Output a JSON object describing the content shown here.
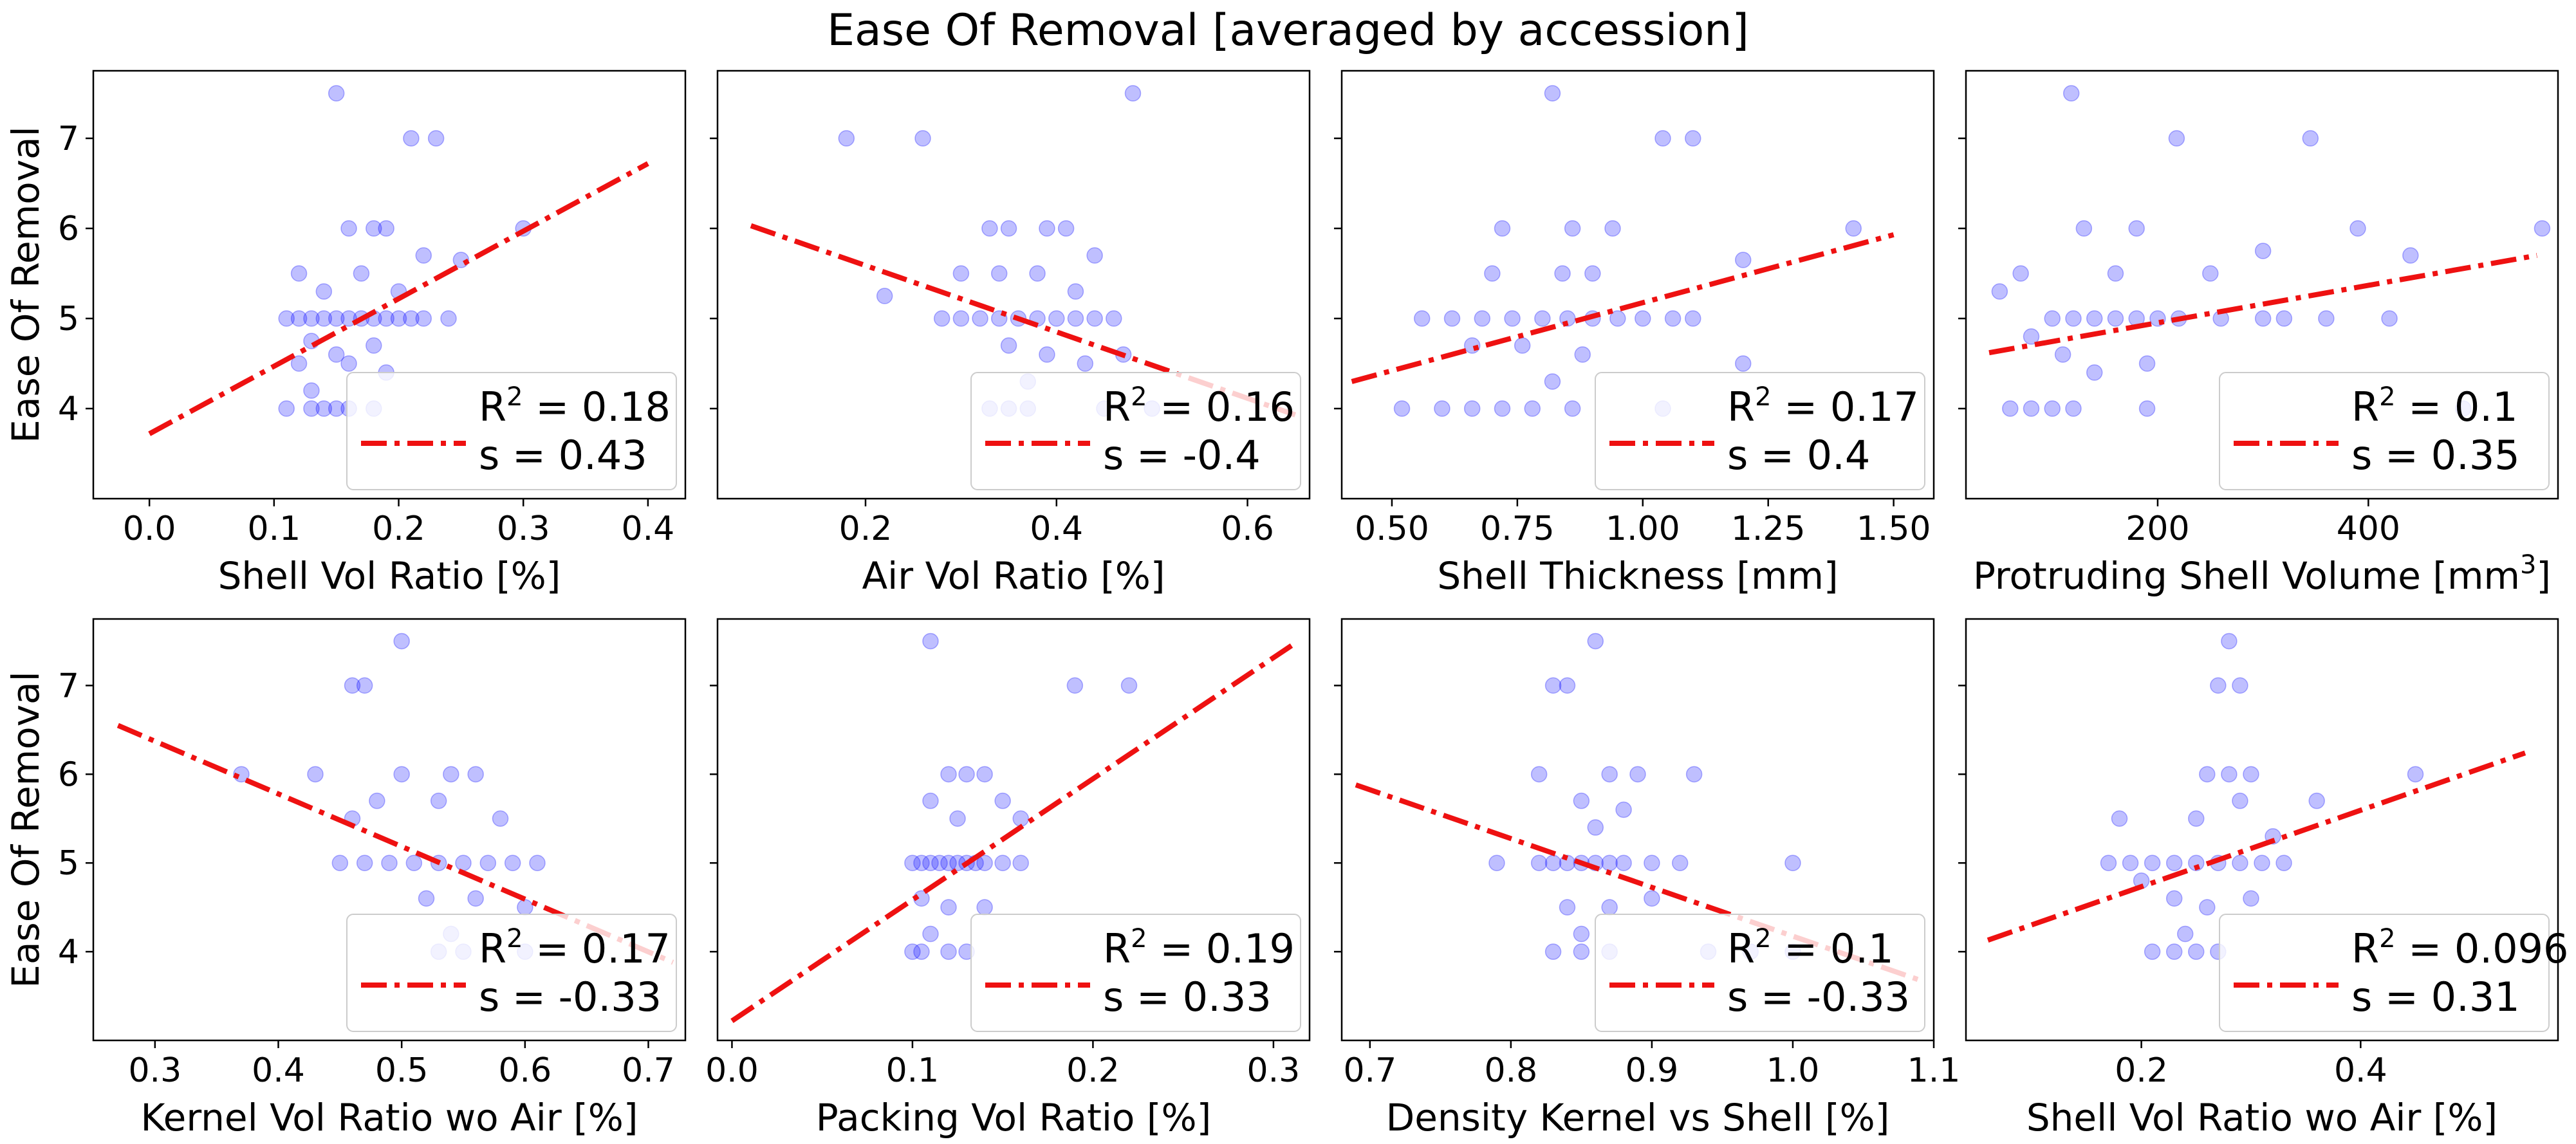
{
  "figure_title": "Ease Of Removal [averaged by accession]",
  "colors": {
    "points": "#0000ff",
    "fit_line": "#ee1111",
    "frame": "#000000"
  },
  "chart_data": [
    {
      "type": "scatter",
      "xlabel": "Shell Vol Ratio [%]",
      "ylabel": "Ease Of Removal",
      "xlim": [
        -0.045,
        0.43
      ],
      "ylim": [
        3.0,
        7.75
      ],
      "xticks": [
        0.0,
        0.1,
        0.2,
        0.3,
        0.4
      ],
      "xtick_labels": [
        "0.0",
        "0.1",
        "0.2",
        "0.3",
        "0.4"
      ],
      "yticks": [
        4,
        5,
        6,
        7
      ],
      "ytick_labels": [
        "4",
        "5",
        "6",
        "7"
      ],
      "fit_line": {
        "x": [
          0.0,
          0.4
        ],
        "y": [
          3.72,
          6.72
        ]
      },
      "legend": {
        "r2": "0.18",
        "s": "0.43"
      },
      "points": [
        [
          0.15,
          7.5
        ],
        [
          0.21,
          7.0
        ],
        [
          0.23,
          7.0
        ],
        [
          0.16,
          6.0
        ],
        [
          0.18,
          6.0
        ],
        [
          0.19,
          6.0
        ],
        [
          0.3,
          6.0
        ],
        [
          0.12,
          5.5
        ],
        [
          0.17,
          5.5
        ],
        [
          0.22,
          5.7
        ],
        [
          0.25,
          5.65
        ],
        [
          0.14,
          5.3
        ],
        [
          0.2,
          5.3
        ],
        [
          0.11,
          5.0
        ],
        [
          0.12,
          5.0
        ],
        [
          0.13,
          5.0
        ],
        [
          0.14,
          5.0
        ],
        [
          0.15,
          5.0
        ],
        [
          0.16,
          5.0
        ],
        [
          0.17,
          5.0
        ],
        [
          0.18,
          5.0
        ],
        [
          0.19,
          5.0
        ],
        [
          0.2,
          5.0
        ],
        [
          0.21,
          5.0
        ],
        [
          0.22,
          5.0
        ],
        [
          0.24,
          5.0
        ],
        [
          0.13,
          4.75
        ],
        [
          0.15,
          4.6
        ],
        [
          0.18,
          4.7
        ],
        [
          0.12,
          4.5
        ],
        [
          0.16,
          4.5
        ],
        [
          0.19,
          4.4
        ],
        [
          0.13,
          4.2
        ],
        [
          0.11,
          4.0
        ],
        [
          0.13,
          4.0
        ],
        [
          0.14,
          4.0
        ],
        [
          0.15,
          4.0
        ],
        [
          0.16,
          4.0
        ],
        [
          0.18,
          4.0
        ]
      ]
    },
    {
      "type": "scatter",
      "xlabel": "Air Vol Ratio [%]",
      "ylabel": "",
      "xlim": [
        0.045,
        0.665
      ],
      "ylim": [
        3.0,
        7.75
      ],
      "xticks": [
        0.2,
        0.4,
        0.6
      ],
      "xtick_labels": [
        "0.2",
        "0.4",
        "0.6"
      ],
      "yticks": [
        4,
        5,
        6,
        7
      ],
      "ytick_labels": [],
      "fit_line": {
        "x": [
          0.08,
          0.65
        ],
        "y": [
          6.03,
          3.93
        ]
      },
      "legend": {
        "r2": "0.16",
        "s": "-0.4"
      },
      "points": [
        [
          0.48,
          7.5
        ],
        [
          0.18,
          7.0
        ],
        [
          0.26,
          7.0
        ],
        [
          0.33,
          6.0
        ],
        [
          0.35,
          6.0
        ],
        [
          0.39,
          6.0
        ],
        [
          0.41,
          6.0
        ],
        [
          0.44,
          5.7
        ],
        [
          0.3,
          5.5
        ],
        [
          0.34,
          5.5
        ],
        [
          0.38,
          5.5
        ],
        [
          0.42,
          5.3
        ],
        [
          0.22,
          5.25
        ],
        [
          0.28,
          5.0
        ],
        [
          0.3,
          5.0
        ],
        [
          0.32,
          5.0
        ],
        [
          0.34,
          5.0
        ],
        [
          0.36,
          5.0
        ],
        [
          0.38,
          5.0
        ],
        [
          0.4,
          5.0
        ],
        [
          0.42,
          5.0
        ],
        [
          0.44,
          5.0
        ],
        [
          0.46,
          5.0
        ],
        [
          0.35,
          4.7
        ],
        [
          0.39,
          4.6
        ],
        [
          0.43,
          4.5
        ],
        [
          0.47,
          4.6
        ],
        [
          0.37,
          4.3
        ],
        [
          0.33,
          4.0
        ],
        [
          0.35,
          4.0
        ],
        [
          0.37,
          4.0
        ],
        [
          0.45,
          4.0
        ],
        [
          0.5,
          4.0
        ]
      ]
    },
    {
      "type": "scatter",
      "xlabel": "Shell Thickness [mm]",
      "ylabel": "",
      "xlim": [
        0.4,
        1.58
      ],
      "ylim": [
        3.0,
        7.75
      ],
      "xticks": [
        0.5,
        0.75,
        1.0,
        1.25,
        1.5
      ],
      "xtick_labels": [
        "0.50",
        "0.75",
        "1.00",
        "1.25",
        "1.50"
      ],
      "yticks": [
        4,
        5,
        6,
        7
      ],
      "ytick_labels": [],
      "fit_line": {
        "x": [
          0.42,
          1.5
        ],
        "y": [
          4.3,
          5.93
        ]
      },
      "legend": {
        "r2": "0.17",
        "s": "0.4"
      },
      "points": [
        [
          0.82,
          7.5
        ],
        [
          1.04,
          7.0
        ],
        [
          1.1,
          7.0
        ],
        [
          0.72,
          6.0
        ],
        [
          0.86,
          6.0
        ],
        [
          0.94,
          6.0
        ],
        [
          1.42,
          6.0
        ],
        [
          0.7,
          5.5
        ],
        [
          0.84,
          5.5
        ],
        [
          0.9,
          5.5
        ],
        [
          1.2,
          5.65
        ],
        [
          0.56,
          5.0
        ],
        [
          0.62,
          5.0
        ],
        [
          0.68,
          5.0
        ],
        [
          0.74,
          5.0
        ],
        [
          0.8,
          5.0
        ],
        [
          0.85,
          5.0
        ],
        [
          0.9,
          5.0
        ],
        [
          0.95,
          5.0
        ],
        [
          1.0,
          5.0
        ],
        [
          1.06,
          5.0
        ],
        [
          1.1,
          5.0
        ],
        [
          0.66,
          4.7
        ],
        [
          0.76,
          4.7
        ],
        [
          0.88,
          4.6
        ],
        [
          0.82,
          4.3
        ],
        [
          1.2,
          4.5
        ],
        [
          0.52,
          4.0
        ],
        [
          0.6,
          4.0
        ],
        [
          0.66,
          4.0
        ],
        [
          0.72,
          4.0
        ],
        [
          0.78,
          4.0
        ],
        [
          0.86,
          4.0
        ],
        [
          1.04,
          4.0
        ]
      ]
    },
    {
      "type": "scatter",
      "xlabel": "Protruding Shell Volume [mm³]",
      "ylabel": "",
      "xlim": [
        18,
        580
      ],
      "ylim": [
        3.0,
        7.75
      ],
      "xticks": [
        200,
        400
      ],
      "xtick_labels": [
        "200",
        "400"
      ],
      "yticks": [
        4,
        5,
        6,
        7
      ],
      "ytick_labels": [],
      "fit_line": {
        "x": [
          40,
          560
        ],
        "y": [
          4.62,
          5.7
        ]
      },
      "legend": {
        "r2": "0.1",
        "s": "0.35"
      },
      "points": [
        [
          118,
          7.5
        ],
        [
          218,
          7.0
        ],
        [
          345,
          7.0
        ],
        [
          130,
          6.0
        ],
        [
          180,
          6.0
        ],
        [
          300,
          5.75
        ],
        [
          390,
          6.0
        ],
        [
          565,
          6.0
        ],
        [
          440,
          5.7
        ],
        [
          70,
          5.5
        ],
        [
          160,
          5.5
        ],
        [
          250,
          5.5
        ],
        [
          50,
          5.3
        ],
        [
          100,
          5.0
        ],
        [
          120,
          5.0
        ],
        [
          140,
          5.0
        ],
        [
          160,
          5.0
        ],
        [
          180,
          5.0
        ],
        [
          200,
          5.0
        ],
        [
          220,
          5.0
        ],
        [
          260,
          5.0
        ],
        [
          300,
          5.0
        ],
        [
          320,
          5.0
        ],
        [
          360,
          5.0
        ],
        [
          420,
          5.0
        ],
        [
          80,
          4.8
        ],
        [
          110,
          4.6
        ],
        [
          140,
          4.4
        ],
        [
          190,
          4.5
        ],
        [
          60,
          4.0
        ],
        [
          80,
          4.0
        ],
        [
          100,
          4.0
        ],
        [
          120,
          4.0
        ],
        [
          190,
          4.0
        ],
        [
          490,
          4.0
        ]
      ]
    },
    {
      "type": "scatter",
      "xlabel": "Kernel Vol Ratio wo Air [%]",
      "ylabel": "Ease Of Removal",
      "xlim": [
        0.25,
        0.73
      ],
      "ylim": [
        3.0,
        7.75
      ],
      "xticks": [
        0.3,
        0.4,
        0.5,
        0.6,
        0.7
      ],
      "xtick_labels": [
        "0.3",
        "0.4",
        "0.5",
        "0.6",
        "0.7"
      ],
      "yticks": [
        4,
        5,
        6,
        7
      ],
      "ytick_labels": [
        "4",
        "5",
        "6",
        "7"
      ],
      "fit_line": {
        "x": [
          0.27,
          0.72
        ],
        "y": [
          6.55,
          3.88
        ]
      },
      "legend": {
        "r2": "0.17",
        "s": "-0.33"
      },
      "points": [
        [
          0.5,
          7.5
        ],
        [
          0.46,
          7.0
        ],
        [
          0.47,
          7.0
        ],
        [
          0.37,
          6.0
        ],
        [
          0.43,
          6.0
        ],
        [
          0.5,
          6.0
        ],
        [
          0.54,
          6.0
        ],
        [
          0.56,
          6.0
        ],
        [
          0.48,
          5.7
        ],
        [
          0.53,
          5.7
        ],
        [
          0.58,
          5.5
        ],
        [
          0.46,
          5.5
        ],
        [
          0.45,
          5.0
        ],
        [
          0.47,
          5.0
        ],
        [
          0.49,
          5.0
        ],
        [
          0.51,
          5.0
        ],
        [
          0.53,
          5.0
        ],
        [
          0.55,
          5.0
        ],
        [
          0.57,
          5.0
        ],
        [
          0.59,
          5.0
        ],
        [
          0.61,
          5.0
        ],
        [
          0.52,
          4.6
        ],
        [
          0.56,
          4.6
        ],
        [
          0.6,
          4.5
        ],
        [
          0.54,
          4.2
        ],
        [
          0.53,
          4.0
        ],
        [
          0.55,
          4.0
        ],
        [
          0.6,
          4.0
        ]
      ]
    },
    {
      "type": "scatter",
      "xlabel": "Packing Vol Ratio [%]",
      "ylabel": "",
      "xlim": [
        -0.008,
        0.32
      ],
      "ylim": [
        3.0,
        7.75
      ],
      "xticks": [
        0.0,
        0.1,
        0.2,
        0.3
      ],
      "xtick_labels": [
        "0.0",
        "0.1",
        "0.2",
        "0.3"
      ],
      "yticks": [
        4,
        5,
        6,
        7
      ],
      "ytick_labels": [],
      "fit_line": {
        "x": [
          0.0,
          0.31
        ],
        "y": [
          3.22,
          7.45
        ]
      },
      "legend": {
        "r2": "0.19",
        "s": "0.33"
      },
      "points": [
        [
          0.11,
          7.5
        ],
        [
          0.19,
          7.0
        ],
        [
          0.22,
          7.0
        ],
        [
          0.12,
          6.0
        ],
        [
          0.13,
          6.0
        ],
        [
          0.14,
          6.0
        ],
        [
          0.15,
          5.7
        ],
        [
          0.11,
          5.7
        ],
        [
          0.16,
          5.5
        ],
        [
          0.125,
          5.5
        ],
        [
          0.1,
          5.0
        ],
        [
          0.105,
          5.0
        ],
        [
          0.11,
          5.0
        ],
        [
          0.115,
          5.0
        ],
        [
          0.12,
          5.0
        ],
        [
          0.125,
          5.0
        ],
        [
          0.13,
          5.0
        ],
        [
          0.135,
          5.0
        ],
        [
          0.14,
          5.0
        ],
        [
          0.15,
          5.0
        ],
        [
          0.16,
          5.0
        ],
        [
          0.105,
          4.6
        ],
        [
          0.12,
          4.5
        ],
        [
          0.14,
          4.5
        ],
        [
          0.11,
          4.2
        ],
        [
          0.1,
          4.0
        ],
        [
          0.105,
          4.0
        ],
        [
          0.12,
          4.0
        ],
        [
          0.13,
          4.0
        ]
      ]
    },
    {
      "type": "scatter",
      "xlabel": "Density Kernel vs Shell [%]",
      "ylabel": "",
      "xlim": [
        0.68,
        1.1
      ],
      "ylim": [
        3.0,
        7.75
      ],
      "xticks": [
        0.7,
        0.8,
        0.9,
        1.0,
        1.1
      ],
      "xtick_labels": [
        "0.7",
        "0.8",
        "0.9",
        "1.0",
        "1.1"
      ],
      "yticks": [
        4,
        5,
        6,
        7
      ],
      "ytick_labels": [],
      "fit_line": {
        "x": [
          0.69,
          1.09
        ],
        "y": [
          5.88,
          3.68
        ]
      },
      "legend": {
        "r2": "0.1",
        "s": "-0.33"
      },
      "points": [
        [
          0.86,
          7.5
        ],
        [
          0.83,
          7.0
        ],
        [
          0.84,
          7.0
        ],
        [
          0.82,
          6.0
        ],
        [
          0.87,
          6.0
        ],
        [
          0.89,
          6.0
        ],
        [
          0.93,
          6.0
        ],
        [
          0.88,
          5.6
        ],
        [
          0.85,
          5.7
        ],
        [
          0.86,
          5.4
        ],
        [
          0.79,
          5.0
        ],
        [
          0.82,
          5.0
        ],
        [
          0.83,
          5.0
        ],
        [
          0.84,
          5.0
        ],
        [
          0.85,
          5.0
        ],
        [
          0.86,
          5.0
        ],
        [
          0.87,
          5.0
        ],
        [
          0.88,
          5.0
        ],
        [
          0.9,
          5.0
        ],
        [
          0.92,
          5.0
        ],
        [
          1.0,
          5.0
        ],
        [
          0.84,
          4.5
        ],
        [
          0.87,
          4.5
        ],
        [
          0.9,
          4.6
        ],
        [
          0.85,
          4.2
        ],
        [
          0.83,
          4.0
        ],
        [
          0.85,
          4.0
        ],
        [
          0.87,
          4.0
        ],
        [
          0.94,
          4.0
        ],
        [
          0.97,
          4.0
        ],
        [
          1.0,
          4.0
        ]
      ]
    },
    {
      "type": "scatter",
      "xlabel": "Shell Vol Ratio wo Air [%]",
      "ylabel": "",
      "xlim": [
        0.04,
        0.58
      ],
      "ylim": [
        3.0,
        7.75
      ],
      "xticks": [
        0.2,
        0.4
      ],
      "xtick_labels": [
        "0.2",
        "0.4"
      ],
      "yticks": [
        4,
        5,
        6,
        7
      ],
      "ytick_labels": [],
      "fit_line": {
        "x": [
          0.06,
          0.55
        ],
        "y": [
          4.13,
          6.24
        ]
      },
      "legend": {
        "r2": "0.096",
        "s": "0.31"
      },
      "points": [
        [
          0.28,
          7.5
        ],
        [
          0.27,
          7.0
        ],
        [
          0.29,
          7.0
        ],
        [
          0.26,
          6.0
        ],
        [
          0.28,
          6.0
        ],
        [
          0.3,
          6.0
        ],
        [
          0.45,
          6.0
        ],
        [
          0.25,
          5.5
        ],
        [
          0.29,
          5.7
        ],
        [
          0.36,
          5.7
        ],
        [
          0.32,
          5.3
        ],
        [
          0.18,
          5.5
        ],
        [
          0.17,
          5.0
        ],
        [
          0.19,
          5.0
        ],
        [
          0.21,
          5.0
        ],
        [
          0.23,
          5.0
        ],
        [
          0.25,
          5.0
        ],
        [
          0.27,
          5.0
        ],
        [
          0.29,
          5.0
        ],
        [
          0.31,
          5.0
        ],
        [
          0.33,
          5.0
        ],
        [
          0.2,
          4.8
        ],
        [
          0.23,
          4.6
        ],
        [
          0.26,
          4.5
        ],
        [
          0.3,
          4.6
        ],
        [
          0.24,
          4.2
        ],
        [
          0.21,
          4.0
        ],
        [
          0.23,
          4.0
        ],
        [
          0.25,
          4.0
        ],
        [
          0.27,
          4.0
        ]
      ]
    }
  ]
}
